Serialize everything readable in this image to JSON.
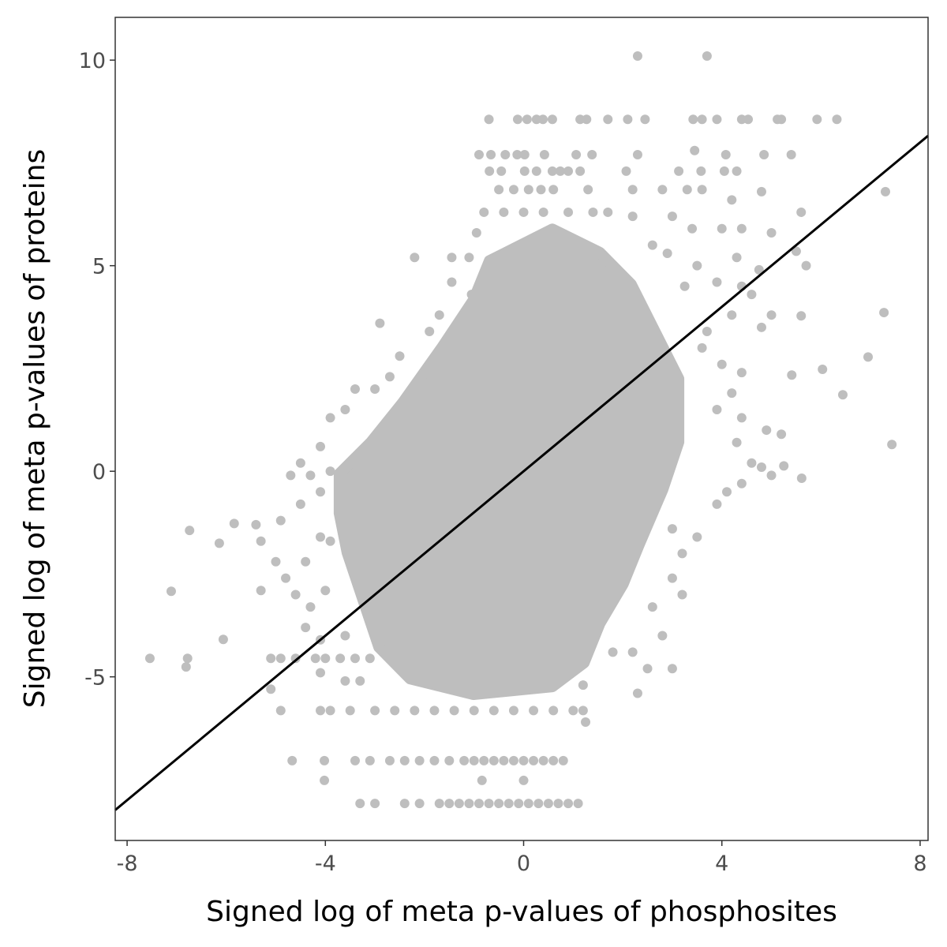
{
  "chart_data": {
    "type": "scatter",
    "title": "",
    "xlabel": "Signed log of meta p-values of phosphosites",
    "ylabel": "Signed log of meta p-values of proteins",
    "xlim": [
      -8.24,
      8.16
    ],
    "ylim": [
      -8.98,
      11.04
    ],
    "x_ticks": [
      -8,
      -4,
      0,
      4,
      8
    ],
    "x_tick_labels": [
      "-8",
      "-4",
      "0",
      "4",
      "8"
    ],
    "y_ticks": [
      -5,
      0,
      5,
      10
    ],
    "y_tick_labels": [
      "-5",
      "0",
      "5",
      "10"
    ],
    "grid": false,
    "point_color": "#bebebe",
    "line_color": "#000000",
    "fit_line": {
      "slope": 1.0,
      "intercept": 0.0
    },
    "dense_region": [
      [
        -3.72,
        -0.06
      ],
      [
        -3.08,
        0.71
      ],
      [
        -2.44,
        1.67
      ],
      [
        -1.65,
        3.01
      ],
      [
        -1.01,
        4.17
      ],
      [
        -0.69,
        5.12
      ],
      [
        0.58,
        5.89
      ],
      [
        1.54,
        5.32
      ],
      [
        2.17,
        4.55
      ],
      [
        2.65,
        3.4
      ],
      [
        3.13,
        2.25
      ],
      [
        3.13,
        0.71
      ],
      [
        2.81,
        -0.44
      ],
      [
        2.33,
        -1.79
      ],
      [
        2.01,
        -2.74
      ],
      [
        1.54,
        -3.7
      ],
      [
        1.22,
        -4.66
      ],
      [
        0.58,
        -5.24
      ],
      [
        -1.01,
        -5.43
      ],
      [
        -2.29,
        -5.05
      ],
      [
        -2.92,
        -4.28
      ],
      [
        -3.24,
        -3.13
      ],
      [
        -3.56,
        -1.98
      ],
      [
        -3.72,
        -1.02
      ]
    ],
    "points": [
      [
        2.3,
        10.1
      ],
      [
        3.7,
        10.1
      ],
      [
        -0.7,
        8.56
      ],
      [
        -0.12,
        8.56
      ],
      [
        0.07,
        8.56
      ],
      [
        0.26,
        8.56
      ],
      [
        0.39,
        8.56
      ],
      [
        0.58,
        8.56
      ],
      [
        1.14,
        8.56
      ],
      [
        1.27,
        8.56
      ],
      [
        1.7,
        8.56
      ],
      [
        2.1,
        8.56
      ],
      [
        2.45,
        8.56
      ],
      [
        3.42,
        8.56
      ],
      [
        3.6,
        8.56
      ],
      [
        3.9,
        8.56
      ],
      [
        4.4,
        8.56
      ],
      [
        4.53,
        8.56
      ],
      [
        5.12,
        8.56
      ],
      [
        5.2,
        8.56
      ],
      [
        5.92,
        8.56
      ],
      [
        6.32,
        8.56
      ],
      [
        -0.9,
        7.7
      ],
      [
        -0.66,
        7.7
      ],
      [
        -0.37,
        7.7
      ],
      [
        -0.13,
        7.7
      ],
      [
        0.02,
        7.7
      ],
      [
        0.42,
        7.7
      ],
      [
        1.06,
        7.7
      ],
      [
        1.38,
        7.7
      ],
      [
        2.3,
        7.7
      ],
      [
        3.45,
        7.8
      ],
      [
        4.08,
        7.7
      ],
      [
        4.85,
        7.7
      ],
      [
        5.4,
        7.7
      ],
      [
        -0.69,
        7.3
      ],
      [
        -0.45,
        7.3
      ],
      [
        0.02,
        7.3
      ],
      [
        0.26,
        7.3
      ],
      [
        0.58,
        7.3
      ],
      [
        0.74,
        7.3
      ],
      [
        0.9,
        7.3
      ],
      [
        1.14,
        7.3
      ],
      [
        2.07,
        7.3
      ],
      [
        3.13,
        7.3
      ],
      [
        3.58,
        7.3
      ],
      [
        4.05,
        7.3
      ],
      [
        4.3,
        7.3
      ],
      [
        -0.5,
        6.85
      ],
      [
        -0.2,
        6.85
      ],
      [
        0.1,
        6.85
      ],
      [
        0.35,
        6.85
      ],
      [
        0.6,
        6.85
      ],
      [
        1.3,
        6.85
      ],
      [
        2.2,
        6.85
      ],
      [
        2.8,
        6.85
      ],
      [
        3.3,
        6.85
      ],
      [
        3.6,
        6.85
      ],
      [
        4.2,
        6.6
      ],
      [
        4.8,
        6.8
      ],
      [
        -0.8,
        6.3
      ],
      [
        -0.4,
        6.3
      ],
      [
        0.0,
        6.3
      ],
      [
        0.4,
        6.3
      ],
      [
        0.9,
        6.3
      ],
      [
        1.4,
        6.3
      ],
      [
        1.7,
        6.3
      ],
      [
        2.2,
        6.2
      ],
      [
        3.0,
        6.2
      ],
      [
        3.4,
        5.9
      ],
      [
        4.0,
        5.9
      ],
      [
        4.4,
        5.9
      ],
      [
        5.0,
        5.8
      ],
      [
        5.6,
        6.3
      ],
      [
        -2.2,
        5.2
      ],
      [
        -1.45,
        5.2
      ],
      [
        -1.1,
        5.2
      ],
      [
        -0.95,
        5.8
      ],
      [
        2.6,
        5.5
      ],
      [
        2.9,
        5.3
      ],
      [
        3.5,
        5.0
      ],
      [
        4.3,
        5.2
      ],
      [
        4.75,
        4.9
      ],
      [
        5.5,
        5.35
      ],
      [
        5.7,
        5.0
      ],
      [
        -1.45,
        4.6
      ],
      [
        -1.05,
        4.3
      ],
      [
        3.25,
        4.5
      ],
      [
        3.9,
        4.6
      ],
      [
        4.4,
        4.5
      ],
      [
        4.6,
        4.3
      ],
      [
        5.0,
        3.8
      ],
      [
        4.2,
        3.8
      ],
      [
        4.8,
        3.5
      ],
      [
        3.7,
        3.4
      ],
      [
        -2.9,
        3.6
      ],
      [
        -1.7,
        3.8
      ],
      [
        -1.9,
        3.4
      ],
      [
        -2.5,
        2.8
      ],
      [
        -2.7,
        2.3
      ],
      [
        -3.0,
        2.0
      ],
      [
        -3.4,
        2.0
      ],
      [
        -3.6,
        1.5
      ],
      [
        -3.9,
        1.3
      ],
      [
        -4.1,
        0.6
      ],
      [
        -3.9,
        0.0
      ],
      [
        -4.3,
        -0.1
      ],
      [
        -4.5,
        0.2
      ],
      [
        -4.7,
        -0.1
      ],
      [
        -4.1,
        -0.5
      ],
      [
        -4.5,
        -0.8
      ],
      [
        3.6,
        3.0
      ],
      [
        4.0,
        2.6
      ],
      [
        4.4,
        2.4
      ],
      [
        4.2,
        1.9
      ],
      [
        3.9,
        1.5
      ],
      [
        4.4,
        1.3
      ],
      [
        4.9,
        1.0
      ],
      [
        5.2,
        0.9
      ],
      [
        4.3,
        0.7
      ],
      [
        4.6,
        0.2
      ],
      [
        4.8,
        0.1
      ],
      [
        4.4,
        -0.3
      ],
      [
        4.1,
        -0.5
      ],
      [
        3.9,
        -0.8
      ],
      [
        5.0,
        -0.1
      ],
      [
        5.25,
        0.13
      ],
      [
        5.61,
        -0.17
      ],
      [
        5.41,
        2.34
      ],
      [
        5.6,
        3.78
      ],
      [
        6.03,
        2.48
      ],
      [
        6.44,
        1.86
      ],
      [
        6.95,
        2.78
      ],
      [
        7.27,
        3.86
      ],
      [
        7.3,
        6.8
      ],
      [
        7.43,
        0.65
      ],
      [
        -6.74,
        -1.44
      ],
      [
        -6.14,
        -1.75
      ],
      [
        -5.84,
        -1.27
      ],
      [
        -7.11,
        -2.92
      ],
      [
        -7.54,
        -4.55
      ],
      [
        -6.78,
        -4.55
      ],
      [
        -6.81,
        -4.76
      ],
      [
        -6.06,
        -4.09
      ],
      [
        -5.4,
        -1.3
      ],
      [
        -5.3,
        -1.7
      ],
      [
        -4.9,
        -1.2
      ],
      [
        -5.0,
        -2.2
      ],
      [
        -4.8,
        -2.6
      ],
      [
        -4.4,
        -2.2
      ],
      [
        -4.1,
        -1.6
      ],
      [
        -3.9,
        -1.7
      ],
      [
        -4.6,
        -3.0
      ],
      [
        -4.3,
        -3.3
      ],
      [
        -4.0,
        -2.9
      ],
      [
        -5.3,
        -2.9
      ],
      [
        -4.4,
        -3.8
      ],
      [
        -4.1,
        -4.1
      ],
      [
        -3.6,
        -4.0
      ],
      [
        -5.1,
        -4.55
      ],
      [
        -4.9,
        -4.55
      ],
      [
        -4.6,
        -4.55
      ],
      [
        -4.2,
        -4.55
      ],
      [
        -4.0,
        -4.55
      ],
      [
        -3.7,
        -4.55
      ],
      [
        -3.4,
        -4.55
      ],
      [
        -3.1,
        -4.55
      ],
      [
        -4.1,
        -4.9
      ],
      [
        -5.1,
        -5.3
      ],
      [
        -3.6,
        -5.1
      ],
      [
        -3.3,
        -5.1
      ],
      [
        -4.9,
        -5.82
      ],
      [
        -4.1,
        -5.82
      ],
      [
        -3.9,
        -5.82
      ],
      [
        -3.5,
        -5.82
      ],
      [
        -3.0,
        -5.82
      ],
      [
        -2.6,
        -5.82
      ],
      [
        -2.2,
        -5.82
      ],
      [
        -1.8,
        -5.82
      ],
      [
        -1.4,
        -5.82
      ],
      [
        -1.0,
        -5.82
      ],
      [
        -0.6,
        -5.82
      ],
      [
        -0.2,
        -5.82
      ],
      [
        0.2,
        -5.82
      ],
      [
        0.6,
        -5.82
      ],
      [
        1.0,
        -5.82
      ],
      [
        1.2,
        -5.82
      ],
      [
        1.25,
        -6.1
      ],
      [
        -4.67,
        -7.04
      ],
      [
        -4.02,
        -7.04
      ],
      [
        -3.4,
        -7.04
      ],
      [
        -3.1,
        -7.04
      ],
      [
        -2.7,
        -7.04
      ],
      [
        -2.4,
        -7.04
      ],
      [
        -2.1,
        -7.04
      ],
      [
        -1.8,
        -7.04
      ],
      [
        -1.5,
        -7.04
      ],
      [
        -1.2,
        -7.04
      ],
      [
        -1.0,
        -7.04
      ],
      [
        -0.8,
        -7.04
      ],
      [
        -0.6,
        -7.04
      ],
      [
        -0.4,
        -7.04
      ],
      [
        -0.2,
        -7.04
      ],
      [
        0.0,
        -7.04
      ],
      [
        0.2,
        -7.04
      ],
      [
        0.4,
        -7.04
      ],
      [
        0.6,
        -7.04
      ],
      [
        0.8,
        -7.04
      ],
      [
        -4.02,
        -7.52
      ],
      [
        -0.84,
        -7.52
      ],
      [
        0.0,
        -7.52
      ],
      [
        -3.3,
        -8.08
      ],
      [
        -3.0,
        -8.08
      ],
      [
        -2.4,
        -8.08
      ],
      [
        -2.1,
        -8.08
      ],
      [
        -1.7,
        -8.08
      ],
      [
        -1.5,
        -8.08
      ],
      [
        -1.3,
        -8.08
      ],
      [
        -1.1,
        -8.08
      ],
      [
        -0.9,
        -8.08
      ],
      [
        -0.7,
        -8.08
      ],
      [
        -0.5,
        -8.08
      ],
      [
        -0.3,
        -8.08
      ],
      [
        -0.1,
        -8.08
      ],
      [
        0.1,
        -8.08
      ],
      [
        0.3,
        -8.08
      ],
      [
        0.5,
        -8.08
      ],
      [
        0.7,
        -8.08
      ],
      [
        0.9,
        -8.08
      ],
      [
        1.1,
        -8.08
      ],
      [
        2.2,
        -4.4
      ],
      [
        2.5,
        -4.8
      ],
      [
        2.8,
        -4.0
      ],
      [
        3.2,
        -3.0
      ],
      [
        2.6,
        -3.3
      ],
      [
        3.0,
        -2.6
      ],
      [
        3.2,
        -2.0
      ],
      [
        3.5,
        -1.6
      ],
      [
        3.0,
        -1.4
      ],
      [
        2.3,
        -5.4
      ],
      [
        3.0,
        -4.8
      ],
      [
        1.2,
        -5.2
      ],
      [
        1.8,
        -4.4
      ]
    ]
  }
}
